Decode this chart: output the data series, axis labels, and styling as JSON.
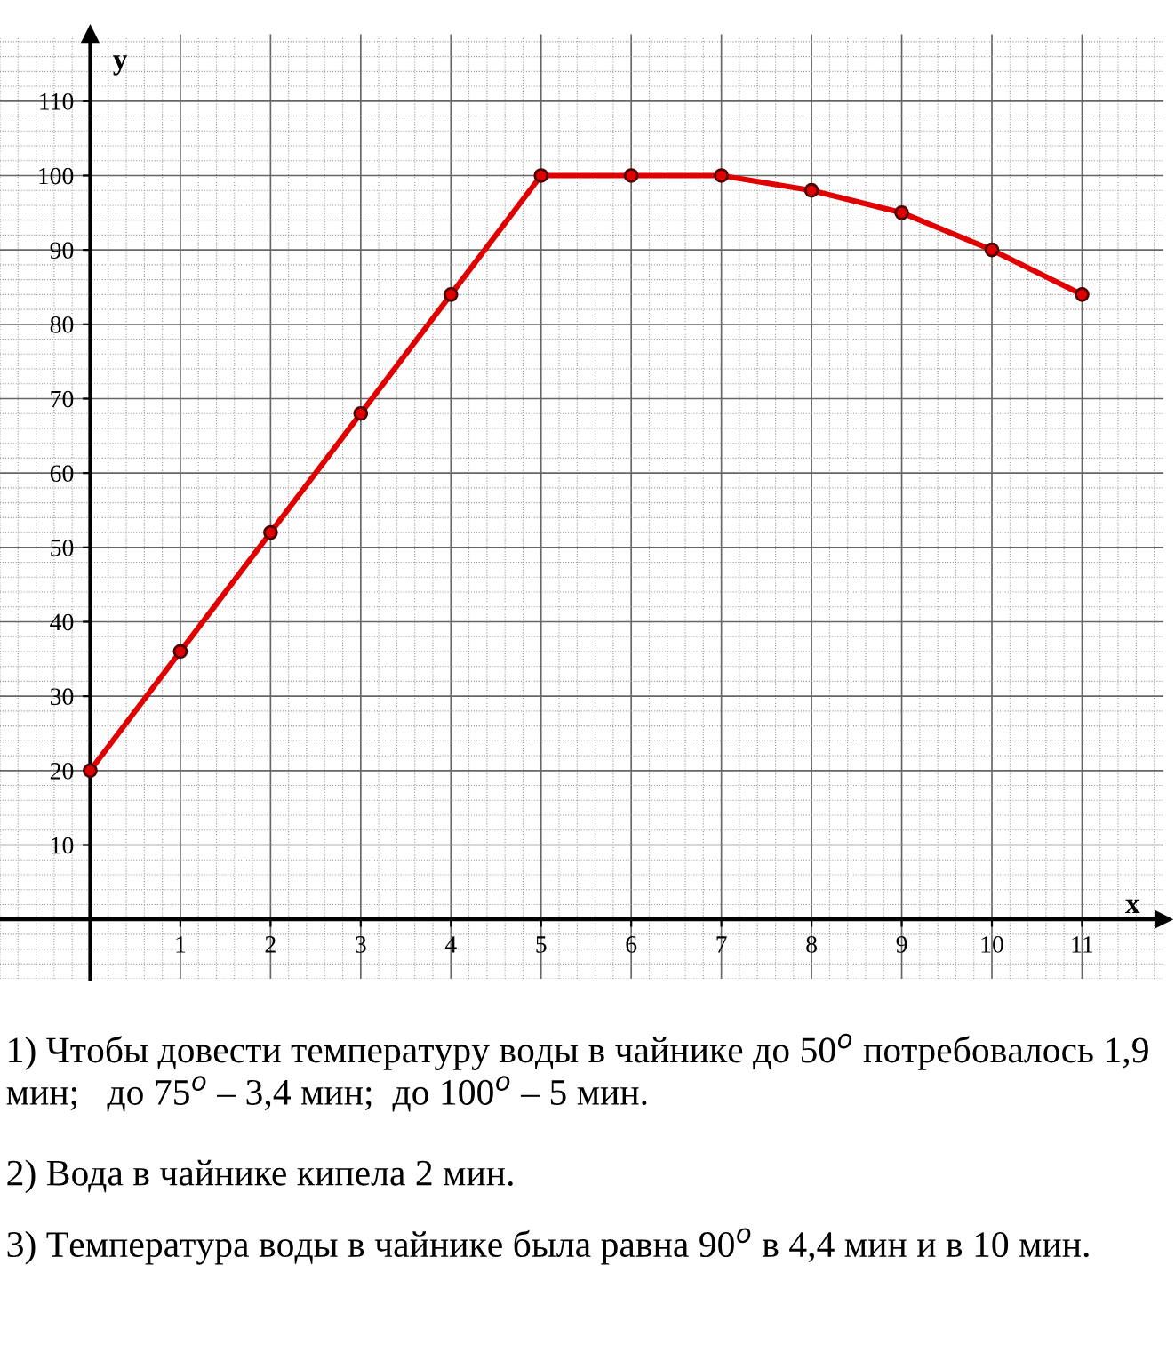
{
  "chart_data": {
    "type": "line",
    "xlabel": "x",
    "ylabel": "y",
    "x": [
      0,
      1,
      2,
      3,
      4,
      5,
      6,
      7,
      8,
      9,
      10,
      11
    ],
    "series": [
      {
        "color": "#e00000",
        "values": [
          20,
          36,
          52,
          68,
          84,
          100,
          100,
          100,
          98,
          95,
          90,
          84
        ]
      }
    ],
    "marker": "circle",
    "line_style": "solid",
    "grid": true,
    "xlim": [
      -1,
      11.9
    ],
    "ylim": [
      -8,
      119
    ],
    "xticks": [
      1,
      2,
      3,
      4,
      5,
      6,
      7,
      8,
      9,
      10,
      11
    ],
    "yticks": [
      10,
      20,
      30,
      40,
      50,
      60,
      70,
      80,
      90,
      100,
      110
    ],
    "annotations": [
      "1) Чтобы довести температуру воды в чайнике до 50$^{o}$ потребовалось 1,9 мин;   до 75$^{o}$ – 3,4 мин;  до 100$^{o}$ – 5 мин.",
      "2) Вода в чайнике кипела 2 мин.",
      "3) Температура воды в чайнике была равна 90$^{o}$ в 4,4 мин и в 10 мин."
    ]
  }
}
